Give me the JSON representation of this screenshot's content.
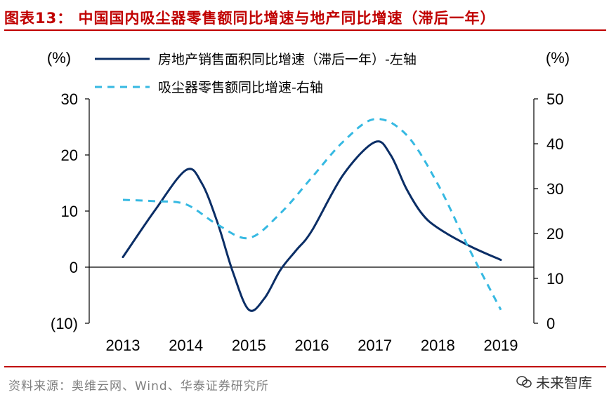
{
  "header": {
    "title": "图表13： 中国国内吸尘器零售额同比增速与地产同比增速（滞后一年）"
  },
  "footer": {
    "source": "资料来源：奥维云网、Wind、华泰证券研究所",
    "watermark": "未来智库"
  },
  "colors": {
    "title": "#c00000",
    "series1": "#0b2e66",
    "series2": "#36b9e2"
  },
  "chart_data": {
    "type": "line",
    "title": "中国国内吸尘器零售额同比增速与地产同比增速（滞后一年）",
    "x": [
      "2013",
      "2014",
      "2015",
      "2016",
      "2017",
      "2018",
      "2019"
    ],
    "left_axis": {
      "label": "(%)",
      "ylim": [
        -10,
        30
      ],
      "ticks": [
        30,
        20,
        10,
        0,
        -10
      ],
      "tick_labels": [
        "30",
        "20",
        "10",
        "0",
        "(10)"
      ]
    },
    "right_axis": {
      "label": "(%)",
      "ylim": [
        0,
        50
      ],
      "ticks": [
        50,
        40,
        30,
        20,
        10,
        0
      ],
      "tick_labels": [
        "50",
        "40",
        "30",
        "20",
        "10",
        "0"
      ]
    },
    "series": [
      {
        "name": "房地产销售面积同比增速（滞后一年）-左轴",
        "axis": "left",
        "style": "solid",
        "values": [
          1.8,
          17.3,
          -7.6,
          6.5,
          22.3,
          7.0,
          1.3
        ],
        "curve": [
          [
            2013,
            1.8
          ],
          [
            2013.5,
            10
          ],
          [
            2014,
            17.3
          ],
          [
            2014.25,
            15
          ],
          [
            2014.5,
            8
          ],
          [
            2014.75,
            -1
          ],
          [
            2015,
            -7.6
          ],
          [
            2015.25,
            -5.5
          ],
          [
            2015.5,
            -0.5
          ],
          [
            2015.75,
            3
          ],
          [
            2016,
            6.5
          ],
          [
            2016.5,
            16.5
          ],
          [
            2017,
            22.3
          ],
          [
            2017.25,
            20
          ],
          [
            2017.5,
            14
          ],
          [
            2017.75,
            9.5
          ],
          [
            2018,
            7
          ],
          [
            2018.5,
            3.8
          ],
          [
            2019,
            1.3
          ]
        ]
      },
      {
        "name": "吸尘器零售额同比增速-右轴",
        "axis": "right",
        "style": "dashed",
        "values": [
          27.5,
          26.5,
          19.0,
          32.5,
          45.5,
          31.0,
          3.0
        ],
        "curve": [
          [
            2013,
            27.5
          ],
          [
            2013.5,
            27.2
          ],
          [
            2014,
            26.5
          ],
          [
            2014.5,
            22
          ],
          [
            2015,
            19
          ],
          [
            2015.5,
            24.5
          ],
          [
            2016,
            32.5
          ],
          [
            2016.5,
            40.5
          ],
          [
            2017,
            45.5
          ],
          [
            2017.5,
            42
          ],
          [
            2018,
            31
          ],
          [
            2018.5,
            16.5
          ],
          [
            2019,
            3
          ]
        ]
      }
    ]
  }
}
